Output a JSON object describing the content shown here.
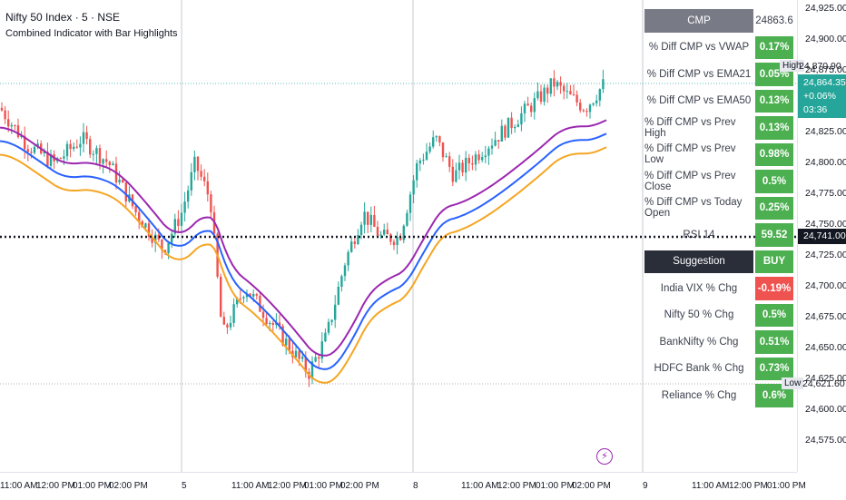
{
  "header": {
    "symbol": "Nifty 50 Index · 5 · NSE",
    "indicator": "Combined Indicator with Bar Highlights"
  },
  "panel": {
    "cmp_label": "CMP",
    "cmp_value": "24863.6",
    "rows": [
      {
        "label": "% Diff CMP vs VWAP",
        "value": "0.17%",
        "color": "green"
      },
      {
        "label": "% Diff CMP vs EMA21",
        "value": "0.05%",
        "color": "green"
      },
      {
        "label": "% Diff CMP vs EMA50",
        "value": "0.13%",
        "color": "green"
      },
      {
        "label": "% Diff CMP vs Prev High",
        "value": "0.13%",
        "color": "green"
      },
      {
        "label": "% Diff CMP vs Prev Low",
        "value": "0.98%",
        "color": "green"
      },
      {
        "label": "% Diff CMP vs Prev Close",
        "value": "0.5%",
        "color": "green"
      },
      {
        "label": "% Diff CMP vs Today Open",
        "value": "0.25%",
        "color": "green"
      },
      {
        "label": "RSI 14",
        "value": "59.52",
        "color": "green"
      }
    ],
    "suggestion_label": "Suggestion",
    "suggestion_value": "BUY",
    "rows2": [
      {
        "label": "India VIX % Chg",
        "value": "-0.19%",
        "color": "red"
      },
      {
        "label": "Nifty 50 % Chg",
        "value": "0.5%",
        "color": "green"
      },
      {
        "label": "BankNifty % Chg",
        "value": "0.51%",
        "color": "green"
      },
      {
        "label": "HDFC Bank % Chg",
        "value": "0.73%",
        "color": "green"
      },
      {
        "label": "Reliance % Chg",
        "value": "0.6%",
        "color": "green"
      }
    ]
  },
  "yaxis": {
    "ticks": [
      "24,925.00",
      "24,900.00",
      "24,875.00",
      "24,850.00",
      "24,825.00",
      "24,800.00",
      "24,775.00",
      "24,750.00",
      "24,725.00",
      "24,700.00",
      "24,675.00",
      "24,650.00",
      "24,625.00",
      "24,600.00",
      "24,575.00"
    ],
    "high_flag": "High",
    "high_value": "24,870.90",
    "last_price": "24,864.35",
    "last_change": "+0.06%",
    "countdown": "03:36",
    "level_price": "24,741.00",
    "low_flag": "Low",
    "low_value": "24,621.60"
  },
  "xaxis": {
    "ticks": [
      "11:00 AM",
      "12:00 PM",
      "01:00 PM",
      "02:00 PM",
      "5",
      "11:00 AM",
      "12:00 PM",
      "01:00 PM",
      "02:00 PM",
      "8",
      "11:00 AM",
      "12:00 PM",
      "01:00 PM",
      "02:00 PM",
      "9",
      "11:00 AM",
      "12:00 PM",
      "01:00 PM"
    ]
  },
  "colors": {
    "up": "#26a69a",
    "down": "#ef5350",
    "ema_purple": "#9c27b0",
    "ema_blue": "#2962ff",
    "ema_orange": "#f5a623",
    "panel_green": "#4caf50",
    "panel_red": "#ef5350"
  }
}
